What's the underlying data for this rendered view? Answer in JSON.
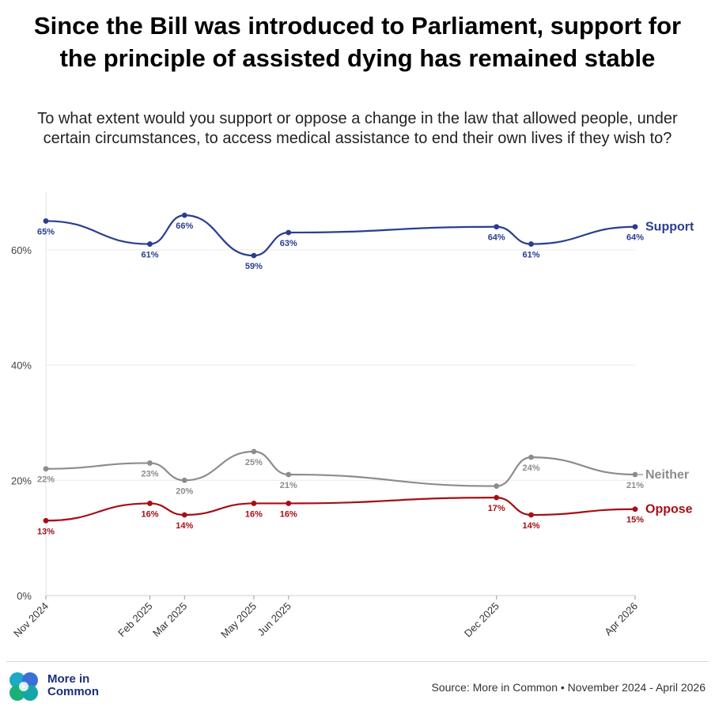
{
  "header": {
    "title": "Since the Bill was introduced to Parliament, support for the principle of assisted dying has remained stable",
    "subtitle": "To what extent would you support or oppose a change in the law that allowed people, under certain circumstances, to access medical assistance to end their own lives if they wish to?"
  },
  "footer": {
    "logo_text": "More in Common",
    "source": "Source: More in Common • November 2024 - April 2026"
  },
  "chart_data": {
    "type": "line",
    "title": "Since the Bill was introduced to Parliament, support for the principle of assisted dying has remained stable",
    "subtitle": "To what extent would you support or oppose a change in the law that allowed people, under certain circumstances, to access medical assistance to end their own lives if they wish to?",
    "x": [
      "2024-11",
      "2025-02",
      "2025-03",
      "2025-05",
      "2025-06",
      "2025-12",
      "2026-01",
      "2026-04"
    ],
    "x_tick_labels": [
      {
        "x": "2024-11",
        "label": "Nov 2024"
      },
      {
        "x": "2025-02",
        "label": "Feb 2025"
      },
      {
        "x": "2025-03",
        "label": "Mar 2025"
      },
      {
        "x": "2025-05",
        "label": "May 2025"
      },
      {
        "x": "2025-06",
        "label": "Jun 2025"
      },
      {
        "x": "2025-12",
        "label": "Dec 2025"
      },
      {
        "x": "2026-04",
        "label": "Apr 2026"
      }
    ],
    "y_ticks": [
      0,
      20,
      40,
      60
    ],
    "y_tick_format": "%",
    "ylim": [
      0,
      70
    ],
    "grid": "horizontal",
    "legend": "right-end labels",
    "series": [
      {
        "name": "Support",
        "color": "#2a3e8f",
        "values": [
          65,
          61,
          66,
          59,
          63,
          64,
          61,
          64
        ],
        "labels": [
          "65%",
          "61%",
          "66%",
          "59%",
          "63%",
          "64%",
          "61%",
          "64%"
        ]
      },
      {
        "name": "Neither",
        "color": "#8c8c8c",
        "values": [
          22,
          23,
          20,
          25,
          21,
          19,
          24,
          21
        ],
        "labels": [
          "22%",
          "23%",
          "20%",
          "25%",
          "21%",
          "",
          "24%",
          "21%"
        ]
      },
      {
        "name": "Oppose",
        "color": "#a50f15",
        "values": [
          13,
          16,
          14,
          16,
          16,
          17,
          14,
          15
        ],
        "labels": [
          "13%",
          "16%",
          "14%",
          "16%",
          "16%",
          "17%",
          "14%",
          "15%"
        ]
      }
    ]
  }
}
